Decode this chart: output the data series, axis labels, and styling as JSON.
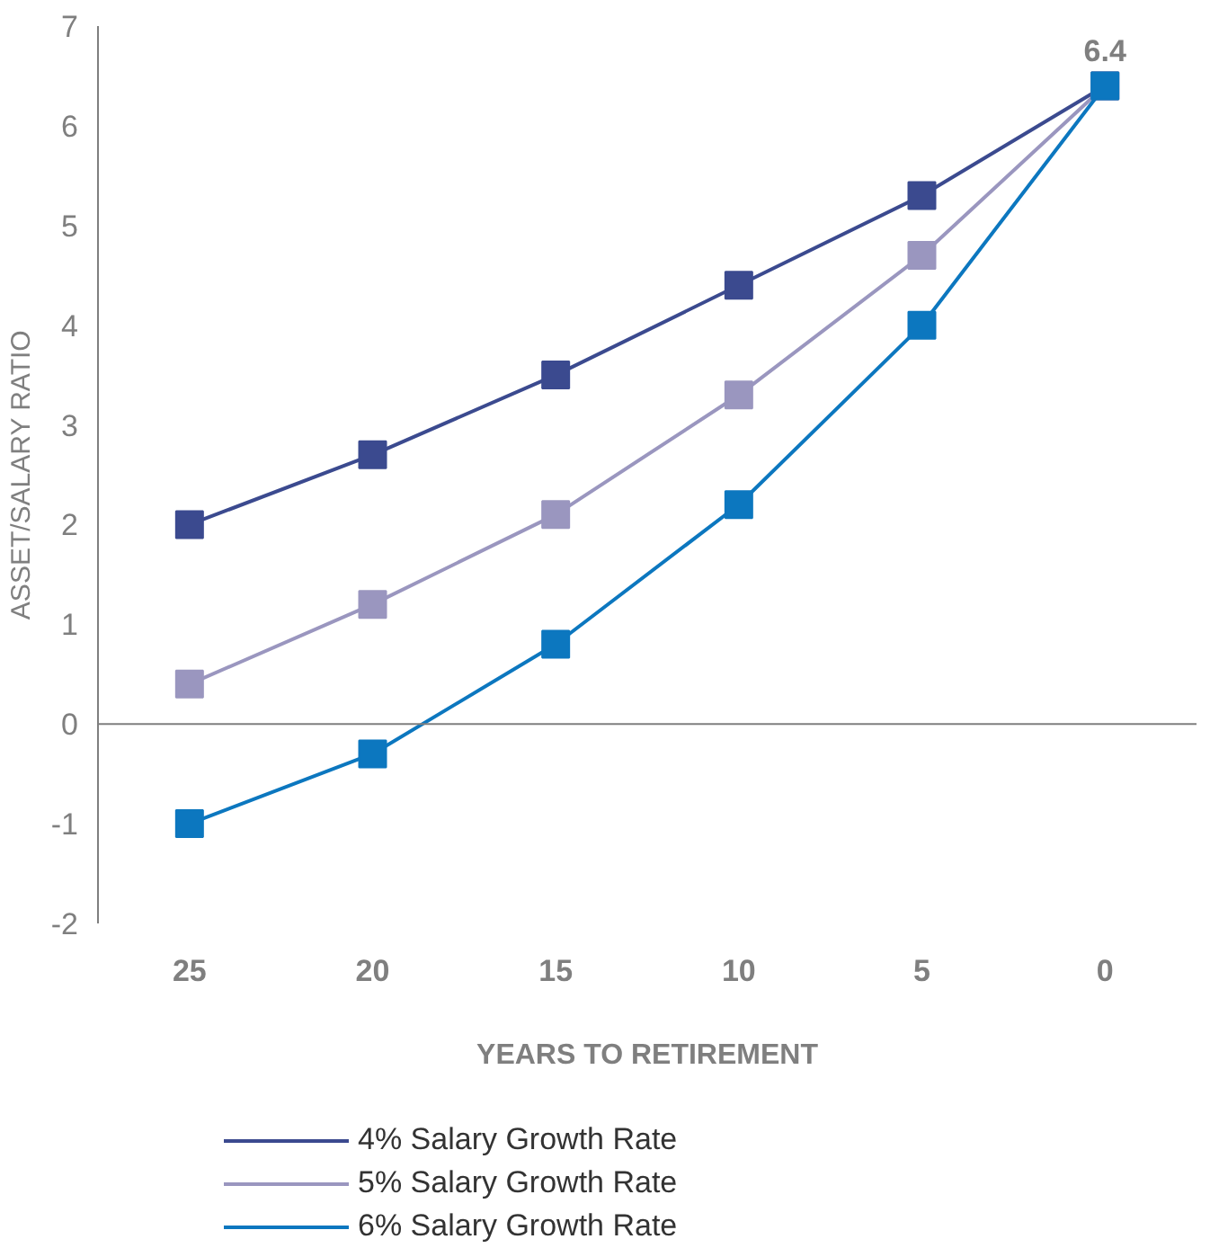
{
  "chart_data": {
    "type": "line",
    "xlabel": "YEARS TO RETIREMENT",
    "ylabel": "ASSET/SALARY RATIO",
    "categories": [
      "25",
      "20",
      "15",
      "10",
      "5",
      "0"
    ],
    "series": [
      {
        "name": "4% Salary Growth Rate",
        "color": "#3b4a8f",
        "values": [
          2.0,
          2.7,
          3.5,
          4.4,
          5.3,
          6.4
        ]
      },
      {
        "name": "5% Salary Growth Rate",
        "color": "#9a96bf",
        "values": [
          0.4,
          1.2,
          2.1,
          3.3,
          4.7,
          6.4
        ]
      },
      {
        "name": "6% Salary Growth Rate",
        "color": "#0c77bf",
        "values": [
          -1.0,
          -0.3,
          0.8,
          2.2,
          4.0,
          6.4
        ]
      }
    ],
    "ylim": [
      -2,
      7
    ],
    "yticks": [
      -2,
      -1,
      0,
      1,
      2,
      3,
      4,
      5,
      6,
      7
    ],
    "ref_lines": [
      {
        "axis": "y",
        "value": 0,
        "color": "#7f7f7f"
      }
    ],
    "annotations": [
      {
        "text": "6.4",
        "x": "0",
        "y": 6.4
      }
    ],
    "marker": "square",
    "line_style": "solid",
    "grid": false,
    "legend": "bottom"
  }
}
